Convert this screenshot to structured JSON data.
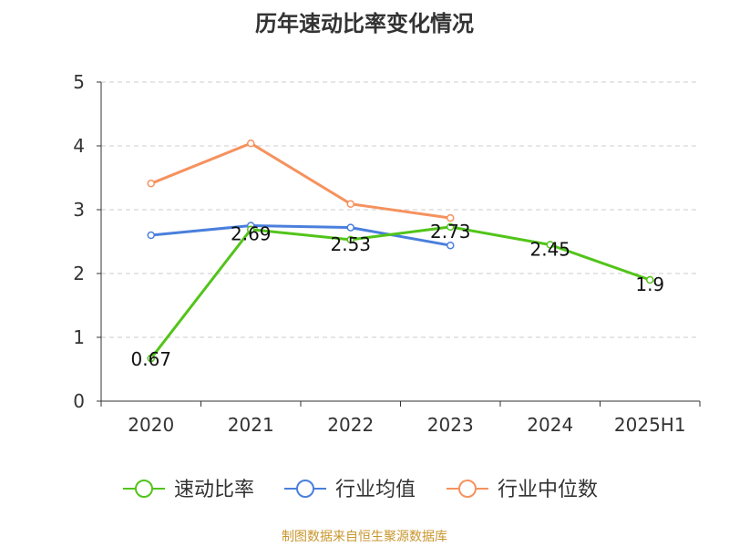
{
  "chart_data": {
    "type": "line",
    "title": "历年速动比率变化情况",
    "categories": [
      "2020",
      "2021",
      "2022",
      "2023",
      "2024",
      "2025H1"
    ],
    "ylim": [
      0,
      5
    ],
    "yticks": [
      0,
      1,
      2,
      3,
      4,
      5
    ],
    "grid": true,
    "legend_position": "bottom",
    "series": [
      {
        "name": "速动比率",
        "color": "#52c41a",
        "values": [
          0.67,
          2.69,
          2.53,
          2.73,
          2.45,
          1.9
        ],
        "labels": [
          "0.67",
          "2.69",
          "2.53",
          "2.73",
          "2.45",
          "1.9"
        ]
      },
      {
        "name": "行业均值",
        "color": "#4a7fdc",
        "values": [
          2.6,
          2.75,
          2.72,
          2.44,
          null,
          null
        ]
      },
      {
        "name": "行业中位数",
        "color": "#f5925e",
        "values": [
          3.41,
          4.04,
          3.09,
          2.87,
          null,
          null
        ]
      }
    ]
  },
  "footer": "制图数据来自恒生聚源数据库"
}
